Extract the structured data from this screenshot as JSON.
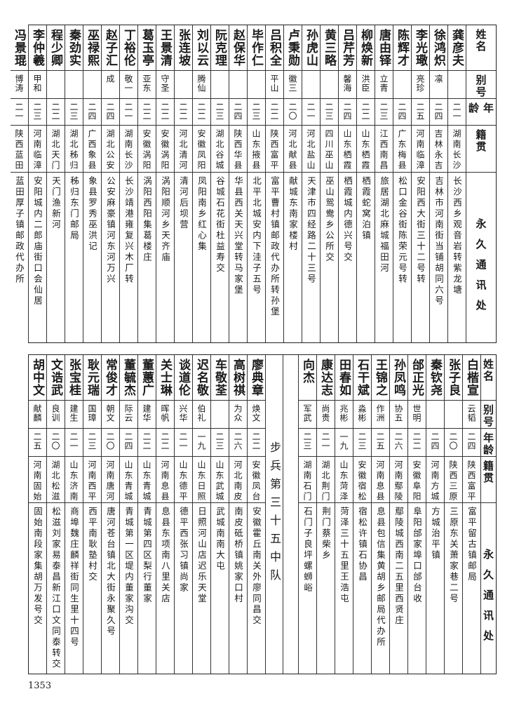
{
  "header": {
    "name": "姓名",
    "alias": "别号",
    "age": "年龄",
    "origin": "籍贯",
    "address": "永久通讯处"
  },
  "top": [
    {
      "name": "龚彦夫",
      "alias": "",
      "age": "二一",
      "origin": "湖南长沙",
      "address": "长沙西乡观音岩转紫龙塘"
    },
    {
      "name": "徐鸿炽",
      "alias": "凛",
      "age": "二四",
      "origin": "吉林永吉",
      "address": "吉林市河南街当铺胡同六号"
    },
    {
      "name": "李光璥",
      "alias": "亮珍",
      "age": "二五",
      "origin": "河南临漳",
      "address": "安阳西大街三十二号转"
    },
    {
      "name": "陈辉才",
      "alias": "",
      "age": "二四",
      "origin": "广东梅县",
      "address": "松口金谷街陈荣元号转"
    },
    {
      "name": "唐由铎",
      "alias": "立青",
      "age": "二三",
      "origin": "江西南昌",
      "address": "旅居湖北麻城福田河"
    },
    {
      "name": "柳焕新",
      "alias": "洪臣",
      "age": "二二",
      "origin": "山东栖霞",
      "address": "栖霞蛇窝泊镇"
    },
    {
      "name": "吕芹芳",
      "alias": "馨海",
      "age": "二四",
      "origin": "山东栖霞",
      "address": "栖霞城内德兴号交"
    },
    {
      "name": "黄三略",
      "alias": "",
      "age": "二三",
      "origin": "四川巫山",
      "address": "巫山鸳鸯乡公所交"
    },
    {
      "name": "孙虎山",
      "alias": "",
      "age": "二一",
      "origin": "河北盐山",
      "address": "天津市四经路二十三号"
    },
    {
      "name": "卢秉勋",
      "alias": "徽三",
      "age": "二〇",
      "origin": "河北献县",
      "address": "献城东南家楼村"
    },
    {
      "name": "吕积全",
      "alias": "平山",
      "age": "二二",
      "origin": "陕西富平",
      "address": "富平曹村镇邮政代办所转孙堡"
    },
    {
      "name": "毕作仁",
      "alias": "",
      "age": "二三",
      "origin": "山东掖县",
      "address": "北平北城安内下洼子五号"
    },
    {
      "name": "赵保华",
      "alias": "",
      "age": "二四",
      "origin": "陕西华县",
      "address": "华县西关天兴堂转马家堡"
    },
    {
      "name": "阮克理",
      "alias": "",
      "age": "二三",
      "origin": "湖北谷城",
      "address": "谷城石花街杜益寿交"
    },
    {
      "name": "刘以云",
      "alias": "腾仙",
      "age": "二二",
      "origin": "安徽凤阳",
      "address": "凤阳南乡红心集"
    },
    {
      "name": "张连坡",
      "alias": "",
      "age": "二二",
      "origin": "河北清河",
      "address": "清河后坝营"
    },
    {
      "name": "王景清",
      "alias": "守圣",
      "age": "二二",
      "origin": "安徽涡阳",
      "address": "涡阳顺河乡天齐庙"
    },
    {
      "name": "葛玉亭",
      "alias": "亚东",
      "age": "二二",
      "origin": "安徽涡阳",
      "address": "涡阳西阳集葛楼庄"
    },
    {
      "name": "丁裕伦",
      "alias": "敬一",
      "age": "二一",
      "origin": "湖南长沙",
      "address": "长沙靖港雍复兴木厂转"
    },
    {
      "name": "赵子汇",
      "alias": "成",
      "age": "二四",
      "origin": "湖北公安",
      "address": "公安麻豪镇河东河万兴"
    },
    {
      "name": "巫禄熙",
      "alias": "",
      "age": "二四",
      "origin": "广西象县",
      "address": "象县罗秀巫洪记"
    },
    {
      "name": "秦劲实",
      "alias": "",
      "age": "二三",
      "origin": "湖北秭归",
      "address": "秭归东门邮局"
    },
    {
      "name": "程少卿",
      "alias": "",
      "age": "二二",
      "origin": "湖北天门",
      "address": "天门渔新河"
    },
    {
      "name": "李仲羲",
      "alias": "甲和",
      "age": "二三",
      "origin": "河南临漳",
      "address": "安阳城内二郎庙街口会仙居"
    },
    {
      "name": "冯景琨",
      "alias": "博涛",
      "age": "二一",
      "origin": "陕西蓝田",
      "address": "蓝田厚子镇邮政代办所"
    }
  ],
  "bottom_section_label": "步兵第三十五中队",
  "bottom_right": [
    {
      "name": "白楷宣",
      "alias": "云韬",
      "age": "二四",
      "origin": "陕西富平",
      "address": "富平留古镇邮局"
    },
    {
      "name": "张子良",
      "alias": "",
      "age": "二〇",
      "origin": "陕西三原",
      "address": "三原东关萧家巷二号"
    },
    {
      "name": "秦钦尧",
      "alias": "",
      "age": "二四",
      "origin": "河南方城",
      "address": "方城治平镇"
    },
    {
      "name": "邰正光",
      "alias": "世明",
      "age": "二二",
      "origin": "安徽阜阳",
      "address": "阜阳邰家埠口邰台收"
    },
    {
      "name": "孙凤鸣",
      "alias": "协五",
      "age": "二六",
      "origin": "河南鄢陵",
      "address": "鄢陵城西南二五里西贤庄"
    },
    {
      "name": "王锦之",
      "alias": "作洲",
      "age": "二五",
      "origin": "河南息县",
      "address": "息县包信集黄胡乡邮局代办所"
    },
    {
      "name": "石干斌",
      "alias": "淼彬",
      "age": "二三",
      "origin": "安徽宿松",
      "address": "宿松许镇石协昌"
    },
    {
      "name": "田春如",
      "alias": "兆彬",
      "age": "一九",
      "origin": "山东菏泽",
      "address": "菏泽三十五里王浩屯"
    },
    {
      "name": "康达志",
      "alias": "尚贵",
      "age": "二一",
      "origin": "湖北荆门",
      "address": "荆门蔡柴乡"
    },
    {
      "name": "向杰",
      "alias": "军武",
      "age": "二三",
      "origin": "湖南石门",
      "address": "石门子良坪螺蛳峪"
    }
  ],
  "bottom_left": [
    {
      "name": "廖典章",
      "alias": "焕文",
      "age": "二二",
      "origin": "安徽凤台",
      "address": "安徽霍丘南关外廖同昌交"
    },
    {
      "name": "高树祺",
      "alias": "为众",
      "age": "二六",
      "origin": "河北南皮",
      "address": "南皮砥桥镇姚家口村"
    },
    {
      "name": "车敬荃",
      "alias": "",
      "age": "二三",
      "origin": "山东武城",
      "address": "武城南南大屯"
    },
    {
      "name": "迟名敬",
      "alias": "伯礼",
      "age": "一九",
      "origin": "山东日照",
      "address": "日照河山店迟乐天堂"
    },
    {
      "name": "谈道伦",
      "alias": "兴华",
      "age": "二一",
      "origin": "山东德平",
      "address": "德平西张习镇尚家"
    },
    {
      "name": "关士琳",
      "alias": "晖帆",
      "age": "二二",
      "origin": "河南息县",
      "address": "息县东项南八里关店"
    },
    {
      "name": "董蕙广",
      "alias": "建华",
      "age": "二二",
      "origin": "山东青城",
      "address": "青城第四区梨行董家"
    },
    {
      "name": "董毓杰",
      "alias": "际云",
      "age": "二四",
      "origin": "山东青城",
      "address": "青城第一区堤内董家沟交"
    },
    {
      "name": "常俊才",
      "alias": "朝文",
      "age": "二〇",
      "origin": "河南唐河",
      "address": "唐河苍台镇北大街永聚久号"
    },
    {
      "name": "耿元瑞",
      "alias": "国璋",
      "age": "二三",
      "origin": "河南西平",
      "address": "西平南耿塾村交"
    },
    {
      "name": "张宝桂",
      "alias": "建生",
      "age": "二一",
      "origin": "山东济南",
      "address": "商埠魏庄麟祥街同生里十四号"
    },
    {
      "name": "文诰武",
      "alias": "良训",
      "age": "二〇",
      "origin": "湖北松滋",
      "address": "松滋刘家易泰昌新江口文同泰转交"
    },
    {
      "name": "胡中文",
      "alias": "献麟",
      "age": "二五",
      "origin": "河南固始",
      "address": "固始南段家集胡万发号交"
    }
  ],
  "page_number": "1353"
}
